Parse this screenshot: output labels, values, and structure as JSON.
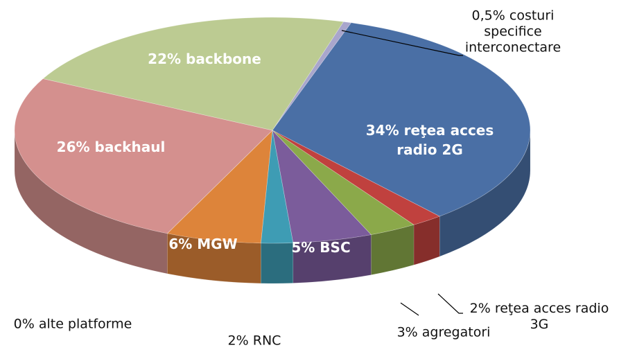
{
  "chart_data": {
    "type": "pie",
    "categories": [
      "costuri specifice interconectare",
      "reţea acces radio 2G",
      "reţea acces radio 3G",
      "agregatori",
      "BSC",
      "RNC",
      "MGW",
      "alte platforme",
      "backhaul",
      "backbone"
    ],
    "values": [
      0.5,
      34,
      2,
      3,
      5,
      2,
      6,
      0,
      26,
      22
    ],
    "value_labels": [
      "0,5%",
      "34%",
      "2%",
      "3%",
      "5%",
      "2%",
      "6%",
      "0%",
      "26%",
      "22%"
    ],
    "colors": [
      "#a9a6cc",
      "#4a6fa5",
      "#c0413e",
      "#8ba94a",
      "#7b5c9b",
      "#3e9cb4",
      "#dd843a",
      "#9a9a9a",
      "#d4908e",
      "#bccb92"
    ]
  }
}
